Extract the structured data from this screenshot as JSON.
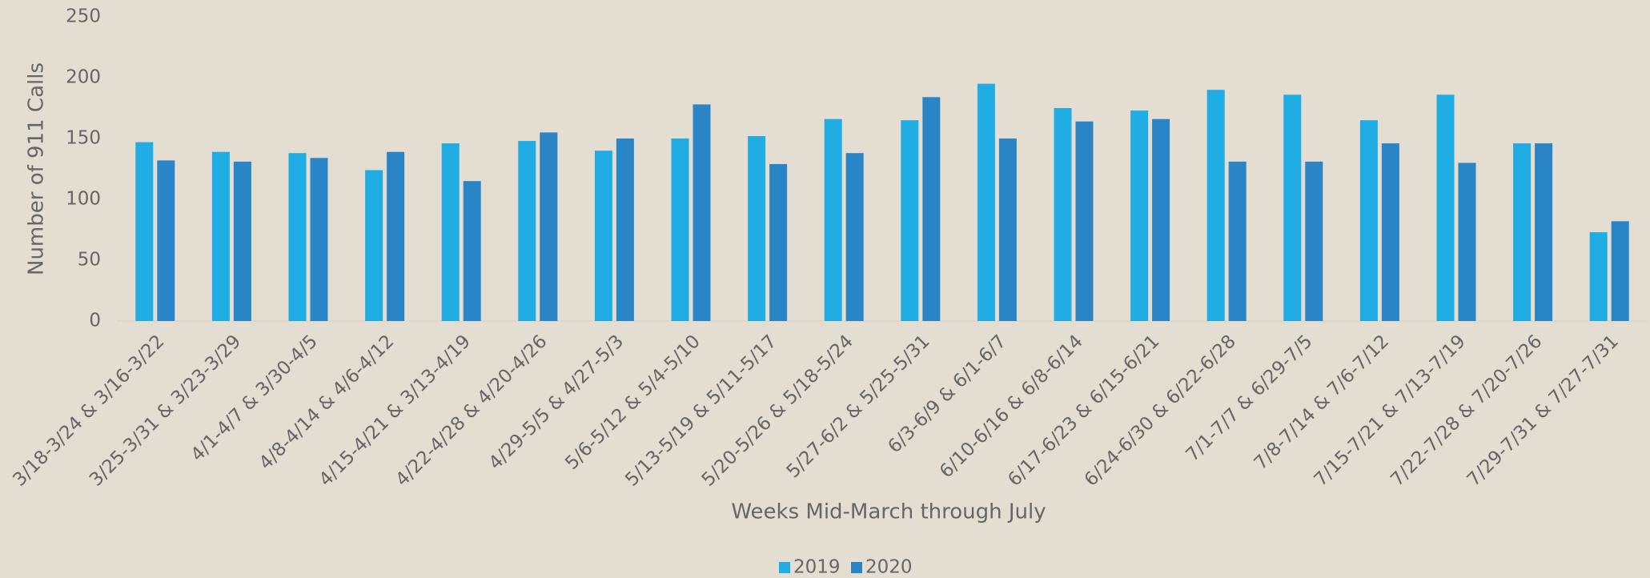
{
  "chart_data": {
    "type": "bar",
    "x_label": "Weeks Mid-March through July",
    "y_label": "Number of 911 Calls",
    "categories": [
      "3/18-3/24 & 3/16-3/22",
      "3/25-3/31 & 3/23-3/29",
      "4/1-4/7 & 3/30-4/5",
      "4/8-4/14 & 4/6-4/12",
      "4/15-4/21 & 3/13-4/19",
      "4/22-4/28 & 4/20-4/26",
      "4/29-5/5 & 4/27-5/3",
      "5/6-5/12 & 5/4-5/10",
      "5/13-5/19 & 5/11-5/17",
      "5/20-5/26 & 5/18-5/24",
      "5/27-6/2 & 5/25-5/31",
      "6/3-6/9 & 6/1-6/7",
      "6/10-6/16 & 6/8-6/14",
      "6/17-6/23 & 6/15-6/21",
      "6/24-6/30 & 6/22-6/28",
      "7/1-7/7 & 6/29-7/5",
      "7/8-7/14 & 7/6-7/12",
      "7/15-7/21 & 7/13-7/19",
      "7/22-7/28 & 7/20-7/26",
      "7/29-7/31 & 7/27-7/31"
    ],
    "series": [
      {
        "name": "2019",
        "color": "#1fade3",
        "values": [
          147,
          139,
          138,
          124,
          146,
          148,
          140,
          150,
          152,
          166,
          165,
          195,
          175,
          173,
          190,
          186,
          165,
          186,
          146,
          73
        ]
      },
      {
        "name": "2020",
        "color": "#2a85c7",
        "values": [
          132,
          131,
          134,
          139,
          115,
          155,
          150,
          178,
          129,
          138,
          184,
          150,
          164,
          166,
          131,
          131,
          146,
          130,
          146,
          82
        ]
      }
    ],
    "ylim": [
      0,
      250
    ],
    "yticks": [
      0,
      50,
      100,
      150,
      200,
      250
    ],
    "grid": false,
    "legend": "bottom"
  }
}
